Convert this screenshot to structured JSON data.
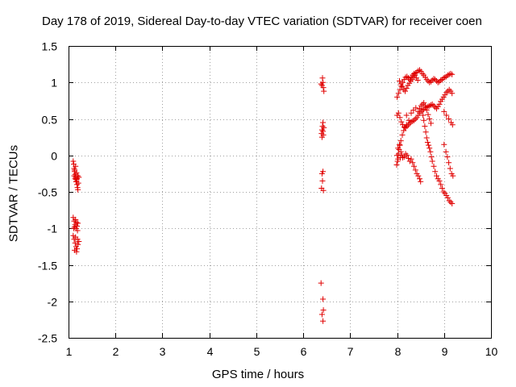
{
  "chart_data": {
    "type": "scatter",
    "title": "Day 178 of 2019, Sidereal Day-to-day VTEC variation (SDTVAR) for receiver coen",
    "xlabel": "GPS time / hours",
    "ylabel": "SDTVAR / TECUs",
    "xlim": [
      1,
      10
    ],
    "ylim": [
      -2.5,
      1.5
    ],
    "xticks": [
      1,
      2,
      3,
      4,
      5,
      6,
      7,
      8,
      9,
      10
    ],
    "xtick_labels": [
      "1",
      "2",
      "3",
      "4",
      "5",
      "6",
      "7",
      "8",
      "9",
      "10"
    ],
    "yticks": [
      -2.5,
      -2,
      -1.5,
      -1,
      -0.5,
      0,
      0.5,
      1,
      1.5
    ],
    "ytick_labels": [
      "-2.5",
      "-2",
      "-1.5",
      "-1",
      "-0.5",
      "0",
      "0.5",
      "1",
      "1.5"
    ],
    "grid": true,
    "marker": "+",
    "marker_color": "#e00000",
    "series": [
      {
        "name": "SDTVAR",
        "points": [
          [
            1.1,
            -0.08
          ],
          [
            1.11,
            -0.12
          ],
          [
            1.12,
            -0.18
          ],
          [
            1.13,
            -0.22
          ],
          [
            1.14,
            -0.26
          ],
          [
            1.15,
            -0.3
          ],
          [
            1.16,
            -0.33
          ],
          [
            1.17,
            -0.36
          ],
          [
            1.18,
            -0.4
          ],
          [
            1.19,
            -0.44
          ],
          [
            1.2,
            -0.47
          ],
          [
            1.12,
            -0.28
          ],
          [
            1.14,
            -0.32
          ],
          [
            1.16,
            -0.36
          ],
          [
            1.18,
            -0.32
          ],
          [
            1.2,
            -0.28
          ],
          [
            1.22,
            -0.3
          ],
          [
            1.13,
            -0.2
          ],
          [
            1.15,
            -0.15
          ],
          [
            1.17,
            -0.24
          ],
          [
            1.21,
            -0.38
          ],
          [
            1.1,
            -0.85
          ],
          [
            1.12,
            -0.9
          ],
          [
            1.14,
            -0.95
          ],
          [
            1.16,
            -1.0
          ],
          [
            1.18,
            -0.97
          ],
          [
            1.2,
            -0.93
          ],
          [
            1.13,
            -0.98
          ],
          [
            1.17,
            -0.92
          ],
          [
            1.19,
            -1.03
          ],
          [
            1.11,
            -1.0
          ],
          [
            1.15,
            -0.88
          ],
          [
            1.1,
            -1.1
          ],
          [
            1.12,
            -1.15
          ],
          [
            1.14,
            -1.2
          ],
          [
            1.16,
            -1.25
          ],
          [
            1.18,
            -1.28
          ],
          [
            1.2,
            -1.22
          ],
          [
            1.22,
            -1.18
          ],
          [
            1.13,
            -1.3
          ],
          [
            1.17,
            -1.32
          ],
          [
            1.19,
            -1.15
          ],
          [
            1.15,
            -1.12
          ],
          [
            6.38,
            0.98
          ],
          [
            6.4,
            0.96
          ],
          [
            6.42,
            1.0
          ],
          [
            6.43,
            0.93
          ],
          [
            6.44,
            0.88
          ],
          [
            6.41,
            1.06
          ],
          [
            6.39,
            0.3
          ],
          [
            6.4,
            0.35
          ],
          [
            6.41,
            0.4
          ],
          [
            6.42,
            0.33
          ],
          [
            6.43,
            0.28
          ],
          [
            6.44,
            0.38
          ],
          [
            6.42,
            0.45
          ],
          [
            6.4,
            0.25
          ],
          [
            6.4,
            -0.25
          ],
          [
            6.42,
            -0.22
          ],
          [
            6.41,
            -0.35
          ],
          [
            6.39,
            -0.45
          ],
          [
            6.43,
            -0.48
          ],
          [
            6.38,
            -1.75
          ],
          [
            6.42,
            -1.97
          ],
          [
            6.43,
            -2.12
          ],
          [
            6.4,
            -2.18
          ],
          [
            6.42,
            -2.27
          ],
          [
            8.0,
            0.8
          ],
          [
            8.03,
            0.85
          ],
          [
            8.06,
            0.9
          ],
          [
            8.09,
            0.95
          ],
          [
            8.12,
            1.0
          ],
          [
            8.15,
            1.04
          ],
          [
            8.18,
            1.07
          ],
          [
            8.21,
            1.08
          ],
          [
            8.24,
            1.06
          ],
          [
            8.27,
            1.04
          ],
          [
            8.3,
            1.07
          ],
          [
            8.33,
            1.1
          ],
          [
            8.36,
            1.12
          ],
          [
            8.39,
            1.13
          ],
          [
            8.42,
            1.14
          ],
          [
            8.45,
            1.16
          ],
          [
            8.48,
            1.17
          ],
          [
            8.51,
            1.15
          ],
          [
            8.54,
            1.12
          ],
          [
            8.57,
            1.1
          ],
          [
            8.6,
            1.07
          ],
          [
            8.63,
            1.04
          ],
          [
            8.66,
            1.02
          ],
          [
            8.69,
            1.0
          ],
          [
            8.72,
            1.01
          ],
          [
            8.75,
            1.03
          ],
          [
            8.78,
            1.05
          ],
          [
            8.81,
            1.04
          ],
          [
            8.84,
            1.02
          ],
          [
            8.87,
            1.0
          ],
          [
            8.9,
            1.01
          ],
          [
            8.93,
            1.03
          ],
          [
            8.96,
            1.04
          ],
          [
            8.99,
            1.06
          ],
          [
            9.02,
            1.07
          ],
          [
            9.05,
            1.08
          ],
          [
            9.08,
            1.1
          ],
          [
            9.11,
            1.11
          ],
          [
            9.14,
            1.12
          ],
          [
            9.17,
            1.11
          ],
          [
            8.05,
            1.02
          ],
          [
            8.08,
            0.98
          ],
          [
            8.11,
            0.94
          ],
          [
            8.14,
            0.9
          ],
          [
            8.17,
            0.88
          ],
          [
            8.2,
            0.92
          ],
          [
            8.23,
            0.96
          ],
          [
            8.26,
            0.99
          ],
          [
            8.29,
            1.02
          ],
          [
            8.32,
            1.04
          ],
          [
            8.35,
            1.08
          ],
          [
            8.38,
            1.1
          ],
          [
            8.41,
            1.06
          ],
          [
            8.44,
            1.03
          ],
          [
            8.0,
            0.55
          ],
          [
            8.03,
            0.58
          ],
          [
            8.06,
            0.52
          ],
          [
            8.09,
            0.46
          ],
          [
            8.12,
            0.42
          ],
          [
            8.15,
            0.39
          ],
          [
            8.18,
            0.38
          ],
          [
            8.21,
            0.4
          ],
          [
            8.24,
            0.42
          ],
          [
            8.27,
            0.44
          ],
          [
            8.3,
            0.46
          ],
          [
            8.33,
            0.47
          ],
          [
            8.36,
            0.48
          ],
          [
            8.39,
            0.5
          ],
          [
            8.42,
            0.52
          ],
          [
            8.45,
            0.55
          ],
          [
            8.48,
            0.58
          ],
          [
            8.51,
            0.6
          ],
          [
            8.54,
            0.62
          ],
          [
            8.57,
            0.63
          ],
          [
            8.6,
            0.65
          ],
          [
            8.63,
            0.66
          ],
          [
            8.66,
            0.67
          ],
          [
            8.69,
            0.68
          ],
          [
            8.72,
            0.69
          ],
          [
            8.75,
            0.7
          ],
          [
            8.78,
            0.68
          ],
          [
            8.81,
            0.66
          ],
          [
            8.84,
            0.64
          ],
          [
            8.87,
            0.67
          ],
          [
            8.9,
            0.7
          ],
          [
            8.93,
            0.74
          ],
          [
            8.96,
            0.77
          ],
          [
            8.99,
            0.8
          ],
          [
            9.02,
            0.83
          ],
          [
            9.05,
            0.86
          ],
          [
            9.08,
            0.88
          ],
          [
            9.11,
            0.9
          ],
          [
            9.14,
            0.88
          ],
          [
            9.17,
            0.85
          ],
          [
            8.45,
            0.6
          ],
          [
            8.48,
            0.64
          ],
          [
            8.51,
            0.68
          ],
          [
            8.54,
            0.7
          ],
          [
            8.57,
            0.72
          ],
          [
            8.6,
            0.68
          ],
          [
            8.63,
            0.62
          ],
          [
            8.66,
            0.56
          ],
          [
            8.69,
            0.5
          ],
          [
            8.72,
            0.44
          ],
          [
            8.02,
            0.1
          ],
          [
            8.05,
            0.15
          ],
          [
            8.08,
            0.2
          ],
          [
            8.11,
            0.28
          ],
          [
            8.14,
            0.34
          ],
          [
            8.17,
            0.38
          ],
          [
            8.2,
            0.42
          ],
          [
            8.0,
            0.0
          ],
          [
            8.02,
            -0.05
          ],
          [
            8.04,
            0.08
          ],
          [
            8.06,
            0.14
          ],
          [
            8.08,
            0.05
          ],
          [
            8.1,
            0.0
          ],
          [
            8.12,
            -0.03
          ],
          [
            8.15,
            -0.02
          ],
          [
            8.18,
            0.02
          ],
          [
            8.21,
            0.0
          ],
          [
            8.24,
            -0.04
          ],
          [
            8.27,
            -0.08
          ],
          [
            8.3,
            -0.05
          ],
          [
            8.33,
            -0.1
          ],
          [
            8.36,
            -0.15
          ],
          [
            8.39,
            -0.2
          ],
          [
            8.42,
            -0.25
          ],
          [
            8.45,
            -0.28
          ],
          [
            8.48,
            -0.32
          ],
          [
            8.5,
            -0.36
          ],
          [
            7.99,
            -0.13
          ],
          [
            8.01,
            -0.08
          ],
          [
            8.03,
            0.02
          ],
          [
            8.07,
            -0.03
          ],
          [
            8.55,
            0.55
          ],
          [
            8.57,
            0.48
          ],
          [
            8.59,
            0.4
          ],
          [
            8.61,
            0.32
          ],
          [
            8.63,
            0.24
          ],
          [
            8.65,
            0.18
          ],
          [
            8.67,
            0.14
          ],
          [
            8.69,
            0.1
          ],
          [
            8.71,
            0.05
          ],
          [
            8.73,
            -0.02
          ],
          [
            8.75,
            -0.08
          ],
          [
            8.78,
            -0.15
          ],
          [
            8.81,
            -0.22
          ],
          [
            8.84,
            -0.28
          ],
          [
            8.87,
            -0.32
          ],
          [
            8.9,
            -0.35
          ],
          [
            8.93,
            -0.4
          ],
          [
            8.96,
            -0.45
          ],
          [
            8.99,
            -0.5
          ],
          [
            9.02,
            -0.52
          ],
          [
            9.05,
            -0.55
          ],
          [
            9.08,
            -0.58
          ],
          [
            9.11,
            -0.62
          ],
          [
            9.14,
            -0.64
          ],
          [
            9.17,
            -0.66
          ],
          [
            9.0,
            0.15
          ],
          [
            9.04,
            0.05
          ],
          [
            9.07,
            -0.02
          ],
          [
            9.1,
            -0.1
          ],
          [
            9.13,
            -0.18
          ],
          [
            9.16,
            -0.25
          ],
          [
            9.19,
            -0.28
          ],
          [
            8.2,
            0.55
          ],
          [
            8.25,
            0.48
          ],
          [
            8.3,
            0.58
          ],
          [
            8.35,
            0.62
          ],
          [
            8.4,
            0.65
          ],
          [
            9.0,
            0.6
          ],
          [
            9.05,
            0.55
          ],
          [
            9.1,
            0.5
          ],
          [
            9.15,
            0.45
          ],
          [
            9.18,
            0.42
          ]
        ]
      }
    ]
  }
}
